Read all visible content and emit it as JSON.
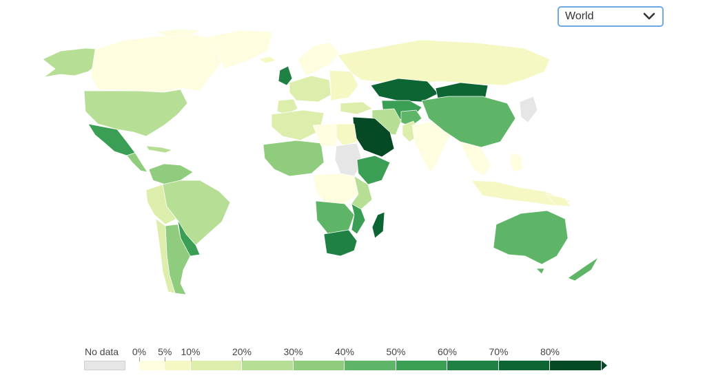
{
  "selector": {
    "value": "World",
    "icon": "chevron-down-icon"
  },
  "legend": {
    "no_data_label": "No data",
    "no_data_color": "#e6e6e6",
    "ticks": [
      "0%",
      "5%",
      "10%",
      "20%",
      "30%",
      "40%",
      "50%",
      "60%",
      "70%",
      "80%"
    ],
    "scale": [
      {
        "from": 0,
        "to": 5,
        "color": "#fffde0"
      },
      {
        "from": 5,
        "to": 10,
        "color": "#f5f8c2"
      },
      {
        "from": 10,
        "to": 20,
        "color": "#dcedac"
      },
      {
        "from": 20,
        "to": 30,
        "color": "#b6de94"
      },
      {
        "from": 30,
        "to": 40,
        "color": "#8fcc7d"
      },
      {
        "from": 40,
        "to": 50,
        "color": "#5eb567"
      },
      {
        "from": 50,
        "to": 60,
        "color": "#3a9e55"
      },
      {
        "from": 60,
        "to": 70,
        "color": "#1f8144"
      },
      {
        "from": 70,
        "to": 80,
        "color": "#0e6534"
      },
      {
        "from": 80,
        "to": 100,
        "color": "#064a25"
      }
    ]
  }
}
